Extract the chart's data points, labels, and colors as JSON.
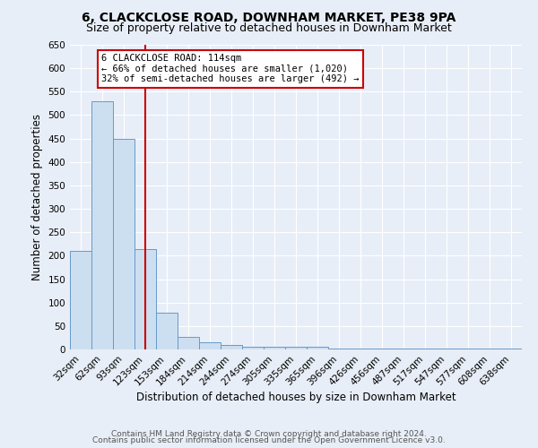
{
  "title": "6, CLACKCLOSE ROAD, DOWNHAM MARKET, PE38 9PA",
  "subtitle": "Size of property relative to detached houses in Downham Market",
  "xlabel": "Distribution of detached houses by size in Downham Market",
  "ylabel": "Number of detached properties",
  "bin_labels": [
    "32sqm",
    "62sqm",
    "93sqm",
    "123sqm",
    "153sqm",
    "184sqm",
    "214sqm",
    "244sqm",
    "274sqm",
    "305sqm",
    "335sqm",
    "365sqm",
    "396sqm",
    "426sqm",
    "456sqm",
    "487sqm",
    "517sqm",
    "547sqm",
    "577sqm",
    "608sqm",
    "638sqm"
  ],
  "bar_values": [
    210,
    530,
    450,
    215,
    78,
    27,
    15,
    10,
    5,
    5,
    5,
    5,
    2,
    2,
    2,
    2,
    2,
    2,
    2,
    2,
    2
  ],
  "bar_color": "#ccdff0",
  "bar_edge_color": "#6699cc",
  "vline_x": 3.0,
  "vline_color": "#cc0000",
  "annotation_text": "6 CLACKCLOSE ROAD: 114sqm\n← 66% of detached houses are smaller (1,020)\n32% of semi-detached houses are larger (492) →",
  "annotation_box_color": "#ffffff",
  "annotation_box_edge_color": "#cc0000",
  "ylim": [
    0,
    650
  ],
  "yticks": [
    0,
    50,
    100,
    150,
    200,
    250,
    300,
    350,
    400,
    450,
    500,
    550,
    600,
    650
  ],
  "footer_line1": "Contains HM Land Registry data © Crown copyright and database right 2024.",
  "footer_line2": "Contains public sector information licensed under the Open Government Licence v3.0.",
  "bg_color": "#e8eef7",
  "plot_bg_color": "#e8eef7",
  "title_fontsize": 10,
  "subtitle_fontsize": 9,
  "axis_label_fontsize": 8.5,
  "tick_fontsize": 7.5,
  "footer_fontsize": 6.5
}
